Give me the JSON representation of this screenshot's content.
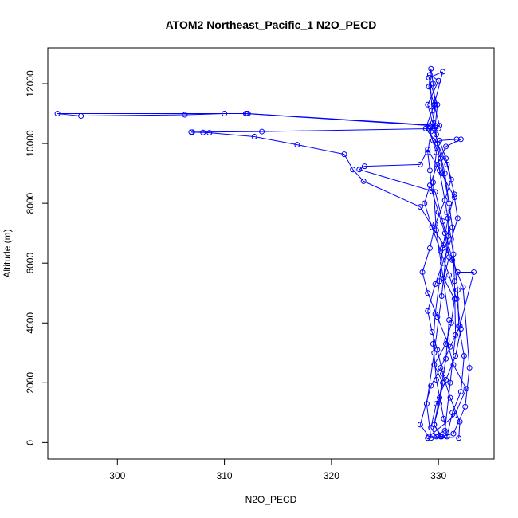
{
  "chart_data": {
    "type": "scatter",
    "title": "ATOM2 Northeast_Pacific_1 N2O_PECD",
    "xlabel": "N2O_PECD",
    "ylabel": "Altitude (m)",
    "xlim": [
      293.5,
      335.2
    ],
    "ylim": [
      -550,
      13200
    ],
    "xticks": [
      300,
      310,
      320,
      330
    ],
    "yticks": [
      0,
      2000,
      4000,
      6000,
      8000,
      10000,
      12000
    ],
    "grid": false,
    "color": "#0000ff",
    "series": [
      {
        "values": [
          [
            329.0,
            150
          ],
          [
            330.3,
            200
          ],
          [
            329.6,
            600
          ],
          [
            330.1,
            1300
          ],
          [
            330.4,
            2000
          ],
          [
            329.6,
            2600
          ],
          [
            330.7,
            3300
          ],
          [
            331.2,
            4000
          ],
          [
            331.5,
            4800
          ],
          [
            330.5,
            5500
          ],
          [
            331.0,
            6200
          ],
          [
            330.6,
            7000
          ],
          [
            330.0,
            7700
          ],
          [
            329.4,
            8400
          ],
          [
            329.2,
            9100
          ],
          [
            329.0,
            9700
          ],
          [
            329.3,
            10400
          ],
          [
            329.5,
            10700
          ],
          [
            329.7,
            11300
          ],
          [
            329.5,
            12000
          ],
          [
            329.3,
            12500
          ],
          [
            329.1,
            11900
          ],
          [
            329.6,
            11300
          ],
          [
            330.1,
            10600
          ],
          [
            312.2,
            11000
          ],
          [
            294.4,
            11000
          ],
          [
            296.6,
            10920
          ],
          [
            306.3,
            10960
          ],
          [
            310.0,
            11000
          ],
          [
            312.1,
            11000
          ],
          [
            312.0,
            11000
          ],
          [
            329.2,
            10600
          ],
          [
            330.0,
            10500
          ],
          [
            313.5,
            10400
          ],
          [
            307.0,
            10380
          ],
          [
            306.9,
            10380
          ],
          [
            308.0,
            10370
          ],
          [
            308.6,
            10360
          ],
          [
            312.8,
            10230
          ],
          [
            316.8,
            9960
          ],
          [
            321.2,
            9640
          ],
          [
            322.0,
            9130
          ],
          [
            323.0,
            8740
          ],
          [
            328.3,
            7880
          ],
          [
            330.5,
            6600
          ],
          [
            331.8,
            5700
          ],
          [
            333.3,
            5700
          ],
          [
            332.0,
            3900
          ],
          [
            331.1,
            3200
          ],
          [
            330.2,
            2500
          ],
          [
            329.3,
            1900
          ],
          [
            328.3,
            600
          ],
          [
            329.1,
            200
          ],
          [
            331.5,
            900
          ],
          [
            332.6,
            1800
          ],
          [
            331.4,
            2600
          ],
          [
            330.8,
            3400
          ],
          [
            329.9,
            4200
          ],
          [
            329.0,
            5000
          ],
          [
            328.5,
            5700
          ],
          [
            329.2,
            6500
          ],
          [
            329.7,
            7300
          ],
          [
            330.6,
            8100
          ],
          [
            331.2,
            8800
          ],
          [
            330.7,
            9500
          ],
          [
            330.1,
            10100
          ],
          [
            331.7,
            10140
          ],
          [
            332.1,
            10140
          ],
          [
            330.7,
            9900
          ],
          [
            329.9,
            9300
          ],
          [
            329.2,
            8600
          ],
          [
            328.7,
            8000
          ],
          [
            329.4,
            7200
          ],
          [
            330.2,
            6400
          ],
          [
            331.0,
            5600
          ],
          [
            331.7,
            4800
          ],
          [
            332.1,
            3800
          ],
          [
            331.6,
            2900
          ],
          [
            330.7,
            2100
          ],
          [
            329.8,
            1300
          ],
          [
            329.3,
            500
          ],
          [
            329.8,
            200
          ],
          [
            331.9,
            150
          ],
          [
            332.0,
            700
          ],
          [
            331.1,
            1500
          ],
          [
            330.4,
            2300
          ],
          [
            329.9,
            3100
          ],
          [
            329.4,
            3700
          ],
          [
            329.0,
            4400
          ],
          [
            329.7,
            5300
          ],
          [
            330.4,
            6000
          ],
          [
            331.2,
            6800
          ],
          [
            331.8,
            7500
          ],
          [
            331.5,
            8200
          ],
          [
            330.3,
            9000
          ],
          [
            329.0,
            9800
          ],
          [
            328.3,
            9300
          ],
          [
            323.1,
            9240
          ],
          [
            322.6,
            9130
          ],
          [
            329.7,
            8380
          ],
          [
            330.4,
            7400
          ],
          [
            331.3,
            6100
          ],
          [
            332.3,
            5200
          ],
          [
            332.9,
            2500
          ],
          [
            332.5,
            1200
          ],
          [
            331.4,
            300
          ],
          [
            330.2,
            200
          ],
          [
            329.6,
            600
          ],
          [
            330.1,
            1500
          ],
          [
            330.7,
            2800
          ],
          [
            331.0,
            4100
          ],
          [
            330.4,
            5600
          ],
          [
            329.8,
            7100
          ],
          [
            329.5,
            8700
          ],
          [
            329.8,
            9700
          ],
          [
            329.1,
            10500
          ],
          [
            329.7,
            10600
          ],
          [
            329.9,
            11300
          ],
          [
            329.1,
            12200
          ],
          [
            330.4,
            12400
          ],
          [
            329.6,
            11300
          ],
          [
            328.8,
            10500
          ],
          [
            329.9,
            10000
          ],
          [
            330.8,
            9300
          ],
          [
            331.5,
            8300
          ],
          [
            330.9,
            7500
          ],
          [
            330.4,
            6500
          ],
          [
            330.1,
            5400
          ],
          [
            329.7,
            4300
          ],
          [
            329.5,
            3300
          ],
          [
            329.8,
            2100
          ],
          [
            330.5,
            800
          ],
          [
            330.8,
            200
          ],
          [
            331.3,
            1000
          ],
          [
            332.1,
            1700
          ],
          [
            332.4,
            2900
          ],
          [
            331.9,
            3900
          ],
          [
            331.8,
            5100
          ],
          [
            331.4,
            6300
          ],
          [
            330.8,
            7700
          ],
          [
            330.1,
            9100
          ],
          [
            329.8,
            10300
          ],
          [
            329.4,
            11100
          ],
          [
            329.2,
            12300
          ],
          [
            330.0,
            12100
          ],
          [
            329.0,
            11300
          ],
          [
            329.6,
            10500
          ],
          [
            330.6,
            9000
          ],
          [
            331.3,
            7200
          ],
          [
            331.5,
            5400
          ],
          [
            331.6,
            3600
          ],
          [
            331.1,
            2000
          ],
          [
            330.6,
            400
          ],
          [
            329.3,
            150
          ],
          [
            328.9,
            1300
          ],
          [
            329.6,
            3000
          ],
          [
            330.3,
            4900
          ],
          [
            330.9,
            6900
          ],
          [
            331.0,
            8000
          ],
          [
            330.2,
            9500
          ],
          [
            329.5,
            10100
          ]
        ]
      }
    ]
  }
}
